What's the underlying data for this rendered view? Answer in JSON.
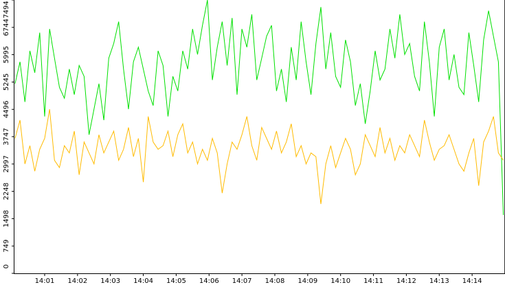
{
  "chart_data": {
    "type": "line",
    "x": [
      0.1,
      0.25,
      0.4,
      0.55,
      0.7,
      0.85,
      1,
      1.15,
      1.3,
      1.45,
      1.6,
      1.75,
      1.9,
      2.05,
      2.2,
      2.35,
      2.5,
      2.65,
      2.8,
      2.95,
      3.1,
      3.25,
      3.4,
      3.55,
      3.7,
      3.85,
      4,
      4.15,
      4.3,
      4.45,
      4.6,
      4.75,
      4.9,
      5.05,
      5.2,
      5.35,
      5.5,
      5.65,
      5.8,
      5.95,
      6.1,
      6.25,
      6.4,
      6.55,
      6.7,
      6.85,
      7,
      7.15,
      7.3,
      7.45,
      7.6,
      7.75,
      7.9,
      8.05,
      8.2,
      8.35,
      8.5,
      8.65,
      8.8,
      8.95,
      9.1,
      9.25,
      9.4,
      9.55,
      9.7,
      9.85,
      10,
      10.15,
      10.3,
      10.45,
      10.6,
      10.75,
      10.9,
      11.05,
      11.2,
      11.35,
      11.5,
      11.65,
      11.8,
      11.95,
      12.1,
      12.25,
      12.4,
      12.55,
      12.7,
      12.85,
      13,
      13.15,
      13.3,
      13.45,
      13.6,
      13.75,
      13.9,
      14.05,
      14.2,
      14.35,
      14.5,
      14.65,
      14.8,
      14.95
    ],
    "series": [
      {
        "color": "#00e000",
        "values": [
          5200,
          5800,
          4700,
          6100,
          5500,
          6600,
          4300,
          6700,
          5900,
          5100,
          4800,
          5600,
          4900,
          5700,
          5400,
          3800,
          4500,
          5200,
          4200,
          5900,
          6300,
          6900,
          5600,
          4500,
          5800,
          6200,
          5600,
          5000,
          4600,
          6100,
          5700,
          4300,
          5400,
          5000,
          6100,
          5600,
          6700,
          6000,
          6800,
          7494,
          5300,
          6200,
          6900,
          5700,
          7000,
          4900,
          6700,
          6200,
          7100,
          5300,
          5900,
          6500,
          6800,
          5000,
          5600,
          4700,
          6200,
          5300,
          6900,
          5800,
          4900,
          6300,
          7300,
          5600,
          6600,
          5400,
          5100,
          6400,
          5800,
          4600,
          5200,
          4100,
          5000,
          6100,
          5300,
          5600,
          6700,
          5900,
          7100,
          6000,
          6300,
          5400,
          5000,
          6900,
          5800,
          4300,
          6200,
          6700,
          5300,
          6000,
          5100,
          4900,
          6600,
          5700,
          4700,
          6400,
          7200,
          6500,
          5800,
          1600
        ]
      },
      {
        "color": "#ffbb00",
        "values": [
          3700,
          4200,
          3000,
          3500,
          2800,
          3400,
          3700,
          4500,
          3100,
          2900,
          3500,
          3300,
          3900,
          2700,
          3600,
          3300,
          3000,
          3800,
          3300,
          3600,
          3900,
          3100,
          3400,
          4000,
          3200,
          3700,
          2500,
          4300,
          3600,
          3400,
          3500,
          3900,
          3200,
          3800,
          4100,
          3300,
          3600,
          3000,
          3400,
          3100,
          3700,
          3300,
          2200,
          3000,
          3600,
          3400,
          3800,
          4300,
          3500,
          3100,
          4000,
          3700,
          3400,
          3900,
          3300,
          3600,
          4100,
          3200,
          3500,
          3000,
          3300,
          3200,
          1900,
          3000,
          3500,
          2900,
          3300,
          3700,
          3400,
          2700,
          3000,
          3800,
          3500,
          3200,
          4000,
          3300,
          3700,
          3100,
          3500,
          3300,
          3800,
          3500,
          3200,
          4200,
          3600,
          3100,
          3400,
          3500,
          3800,
          3400,
          3000,
          2800,
          3300,
          3700,
          2400,
          3600,
          3900,
          4300,
          3300,
          3100
        ]
      }
    ],
    "xlim": [
      0.06,
      15.0
    ],
    "xticks": [
      {
        "value": 1,
        "label": "14:01"
      },
      {
        "value": 2,
        "label": "14:02"
      },
      {
        "value": 3,
        "label": "14:03"
      },
      {
        "value": 4,
        "label": "14:04"
      },
      {
        "value": 5,
        "label": "14:05"
      },
      {
        "value": 6,
        "label": "14:06"
      },
      {
        "value": 7,
        "label": "14:07"
      },
      {
        "value": 8,
        "label": "14:08"
      },
      {
        "value": 9,
        "label": "14:09"
      },
      {
        "value": 10,
        "label": "14:10"
      },
      {
        "value": 11,
        "label": "14:11"
      },
      {
        "value": 12,
        "label": "14:12"
      },
      {
        "value": 13,
        "label": "14:13"
      },
      {
        "value": 14,
        "label": "14:14"
      }
    ],
    "ylim": [
      0,
      7494
    ],
    "yticks": [
      0,
      749,
      1498,
      2248,
      2997,
      3747,
      4496,
      5245,
      5995,
      6744,
      7494
    ]
  }
}
